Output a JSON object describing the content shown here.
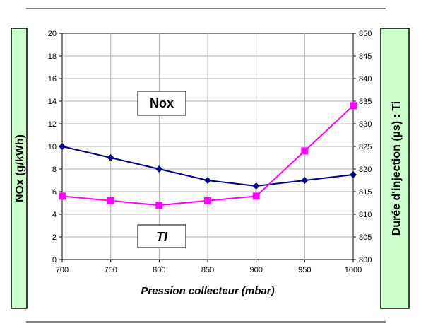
{
  "chart_data": {
    "type": "line",
    "title": "",
    "xlabel": "Pression collecteur (mbar)",
    "ylabel_left": "NOx (g/kWh)",
    "ylabel_right": "Durée d'injection (µs) : Ti",
    "x": [
      700,
      750,
      800,
      850,
      900,
      950,
      1000
    ],
    "xlim": [
      700,
      1000
    ],
    "x_ticks": [
      "700",
      "750",
      "800",
      "850",
      "900",
      "950",
      "1000"
    ],
    "ylim_left": [
      0,
      20
    ],
    "y_ticks_left": [
      "0",
      "2",
      "4",
      "6",
      "8",
      "10",
      "12",
      "14",
      "16",
      "18",
      "20"
    ],
    "ylim_right": [
      800,
      850
    ],
    "y_ticks_right": [
      "800",
      "805",
      "810",
      "815",
      "820",
      "825",
      "830",
      "835",
      "840",
      "845",
      "850"
    ],
    "grid": true,
    "series": [
      {
        "name": "Nox",
        "axis": "left",
        "marker": "diamond",
        "color": "#000080",
        "values": [
          10,
          9,
          8,
          7,
          6.5,
          7,
          7.5
        ]
      },
      {
        "name": "TI",
        "axis": "right",
        "marker": "square",
        "color": "#FF00FF",
        "values": [
          814,
          813,
          812,
          813,
          814,
          824,
          834
        ]
      }
    ],
    "annotations": [
      {
        "text": "Nox",
        "italic": false
      },
      {
        "text": "TI",
        "italic": true
      }
    ],
    "colors": {
      "label_box": "#CCFFCC",
      "grid": "#B0B0B0"
    }
  }
}
